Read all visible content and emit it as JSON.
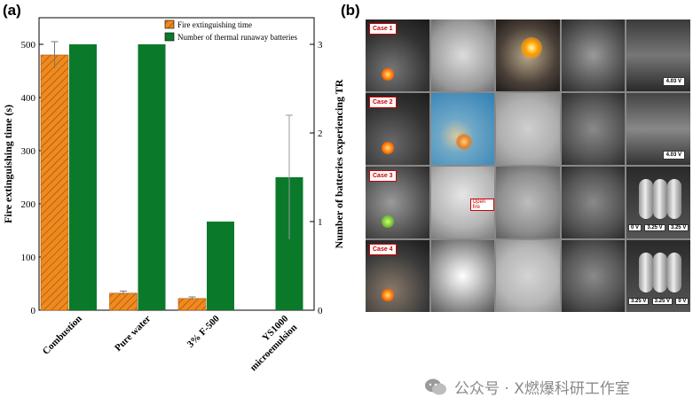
{
  "panel_a_label": "(a)",
  "panel_b_label": "(b)",
  "chart_data": {
    "type": "bar",
    "categories": [
      "Combustion",
      "Pure water",
      "3% F-500",
      "YS1000 microemulsion"
    ],
    "series": [
      {
        "name": "Fire extinguishing time",
        "axis": "left",
        "color": "#f08a1e",
        "hatch": true,
        "values": [
          480,
          32,
          22,
          null
        ],
        "error": [
          25,
          4,
          3,
          null
        ]
      },
      {
        "name": "Number of thermal runaway batteries",
        "axis": "right",
        "color": "#0a7a2a",
        "values": [
          3,
          3,
          1,
          1.5
        ],
        "error": [
          null,
          null,
          null,
          0.7
        ]
      }
    ],
    "ylabel": "Fire extinguishing time (s)",
    "ylabel_right": "Number of batteries experiencing TR",
    "ylim": [
      0,
      550
    ],
    "ylim_right": [
      0,
      3.3
    ],
    "yticks": [
      0,
      100,
      200,
      300,
      400,
      500
    ],
    "yticks_right": [
      0,
      1,
      2,
      3
    ],
    "legend_position": "top-right"
  },
  "photo_panel": {
    "case_labels": [
      "Case 1",
      "Case 2",
      "Case 3",
      "Case 4"
    ],
    "row_voltages": [
      "4.03 V",
      "4.03 V"
    ],
    "row3_voltages": [
      "0 V",
      "3.25 V",
      "3.25 V"
    ],
    "row4_voltages": [
      "3.25 V",
      "3.25 V",
      "0 V"
    ],
    "open_fire_label": "Open fire"
  },
  "watermark": "公众号 · X燃爆科研工作室"
}
